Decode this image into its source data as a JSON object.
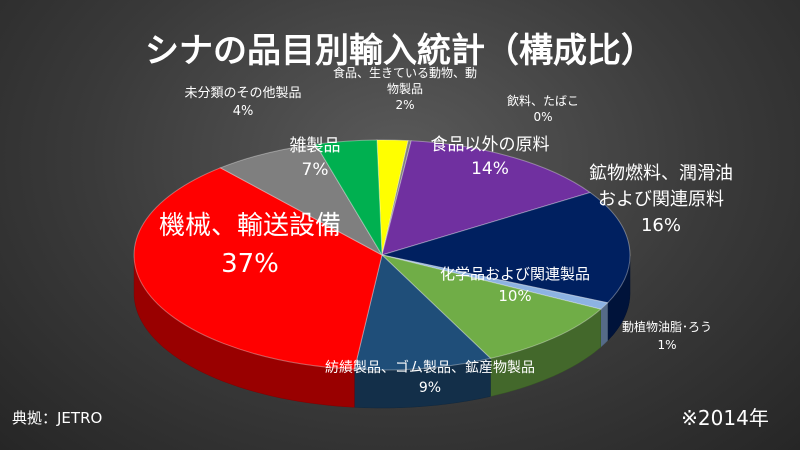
{
  "chart_data": {
    "type": "pie",
    "title": "シナの品目別輸入統計（構成比）",
    "slices": [
      {
        "label": [
          "食品、生きている動物、動",
          "物製品"
        ],
        "value": 2,
        "value_text": "2%",
        "color": "#ffff00"
      },
      {
        "label": [
          "飲料、たばこ"
        ],
        "value": 0,
        "value_text": "0%",
        "color": "#7f7f7f"
      },
      {
        "label": [
          "食品以外の原料"
        ],
        "value": 14,
        "value_text": "14%",
        "color": "#7030a0"
      },
      {
        "label": [
          "鉱物燃料、潤滑油",
          "および関連原料"
        ],
        "value": 16,
        "value_text": "16%",
        "color": "#002060"
      },
      {
        "label": [
          "動植物油脂･ろう"
        ],
        "value": 1,
        "value_text": "1%",
        "color": "#8db3e2"
      },
      {
        "label": [
          "化学品および関連製品"
        ],
        "value": 10,
        "value_text": "10%",
        "color": "#70ad47"
      },
      {
        "label": [
          "紡績製品、ゴム製品、鉱産物製品"
        ],
        "value": 9,
        "value_text": "9%",
        "color": "#1f4e79"
      },
      {
        "label": [
          "機械、輸送設備"
        ],
        "value": 37,
        "value_text": "37%",
        "color": "#ff0000"
      },
      {
        "label": [
          "雑製品"
        ],
        "value": 7,
        "value_text": "7%",
        "color": "#7f7f7f"
      },
      {
        "label": [
          "未分類のその他製品"
        ],
        "value": 4,
        "value_text": "4%",
        "color": "#00b050"
      }
    ]
  },
  "source": "典拠：JETRO",
  "year_note": "※2014年"
}
